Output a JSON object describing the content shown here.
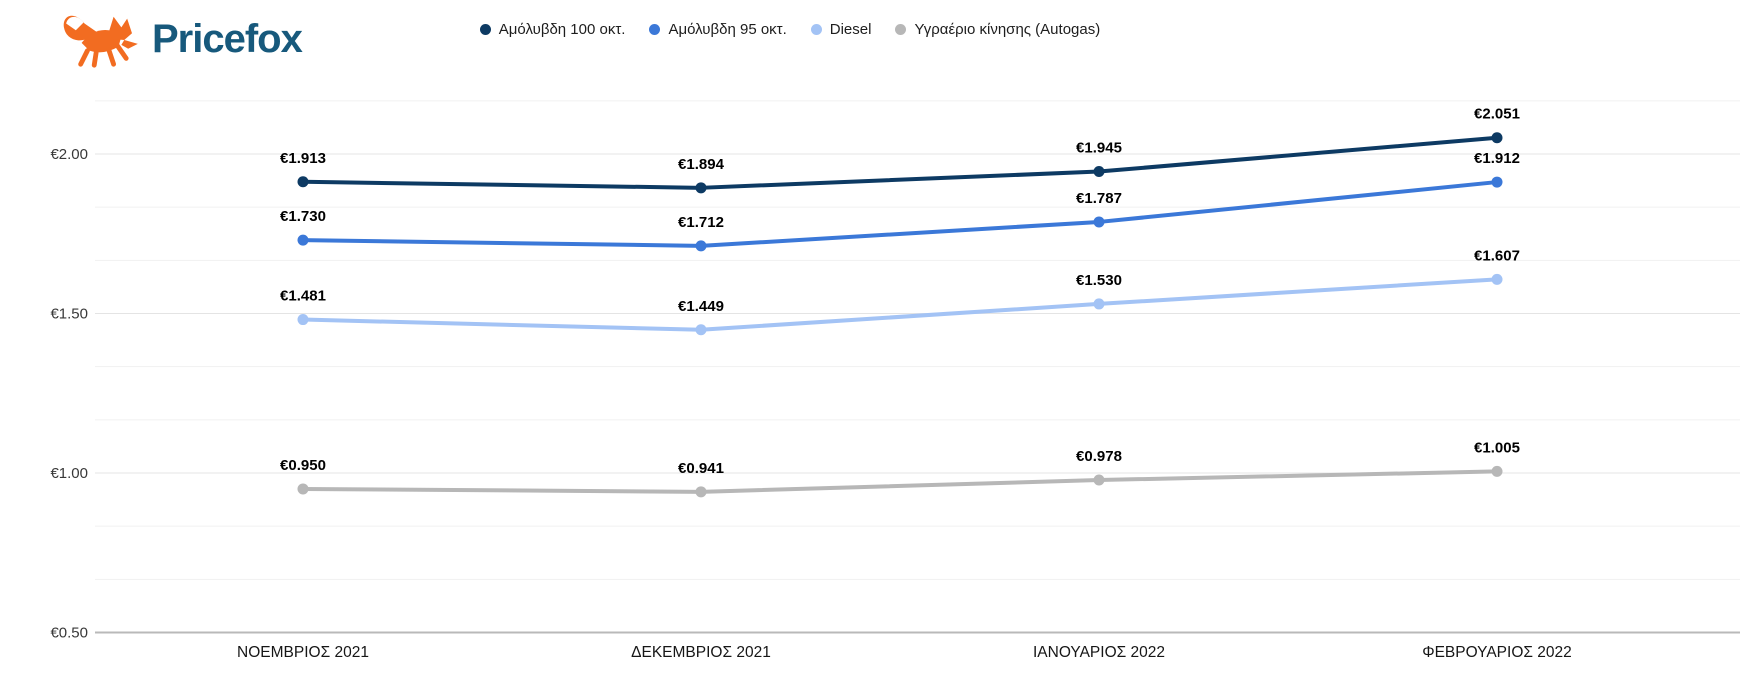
{
  "logo": {
    "text": "Pricefox"
  },
  "colors": {
    "navy": "#0d3a63",
    "blue": "#3b78d8",
    "light_blue": "#a3c3f5",
    "gray": "#b7b7b7",
    "logo_orange": "#f26c21",
    "logo_text": "#17597c",
    "grid_major": "#e4e4e4",
    "grid_minor": "#f1f1f1",
    "axis_line": "#b9b9b9",
    "data_label": "#000000",
    "tick_label": "#383838",
    "x_label": "#161616",
    "legend_text": "#1d1d1d"
  },
  "chart_data": {
    "type": "line",
    "title": "",
    "categories": [
      "ΝΟΕΜΒΡΙΟΣ 2021",
      "ΔΕΚΕΜΒΡΙΟΣ 2021",
      "ΙΑΝΟΥΑΡΙΟΣ 2022",
      "ΦΕΒΡΟΥΑΡΙΟΣ 2022"
    ],
    "series": [
      {
        "name": "Αμόλυβδη 100 οκτ.",
        "color_key": "navy",
        "values": [
          1.913,
          1.894,
          1.945,
          2.051
        ],
        "labels": [
          "€1.913",
          "€1.894",
          "€1.945",
          "€2.051"
        ]
      },
      {
        "name": "Αμόλυβδη 95 οκτ.",
        "color_key": "blue",
        "values": [
          1.73,
          1.712,
          1.787,
          1.912
        ],
        "labels": [
          "€1.730",
          "€1.712",
          "€1.787",
          "€1.912"
        ]
      },
      {
        "name": "Diesel",
        "color_key": "light_blue",
        "values": [
          1.481,
          1.449,
          1.53,
          1.607
        ],
        "labels": [
          "€1.481",
          "€1.449",
          "€1.530",
          "€1.607"
        ]
      },
      {
        "name": "Υγραέριο κίνησης (Autogas)",
        "color_key": "gray",
        "values": [
          0.95,
          0.941,
          0.978,
          1.005
        ],
        "labels": [
          "€0.950",
          "€0.941",
          "€0.978",
          "€1.005"
        ]
      }
    ],
    "y_axis": {
      "ticks": [
        "€2.00",
        "€1.50",
        "€1.00",
        "€0.50"
      ],
      "tick_values": [
        2.0,
        1.5,
        1.0,
        0.5
      ],
      "min": 0.5,
      "max": 2.1667,
      "minor_step": 0.1667
    },
    "xlabel": "",
    "ylabel": "",
    "grid": true,
    "legend_position": "top"
  }
}
